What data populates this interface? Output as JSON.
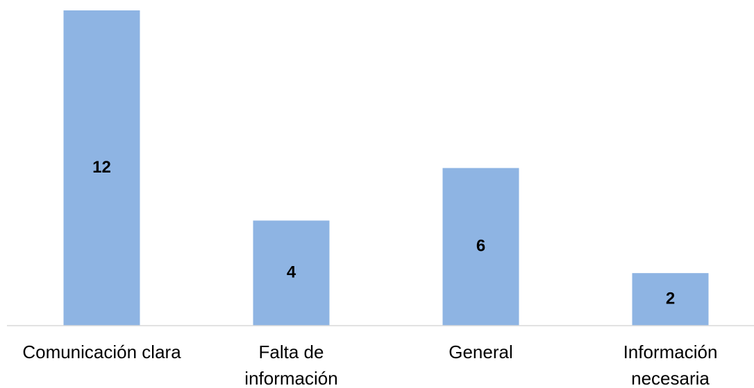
{
  "chart_data": {
    "type": "bar",
    "categories": [
      "Comunicación clara",
      "Falta de información",
      "General",
      "Información necesaria"
    ],
    "values": [
      12,
      4,
      6,
      2
    ],
    "color": "#8eb4e3",
    "ylim": [
      0,
      12
    ]
  }
}
